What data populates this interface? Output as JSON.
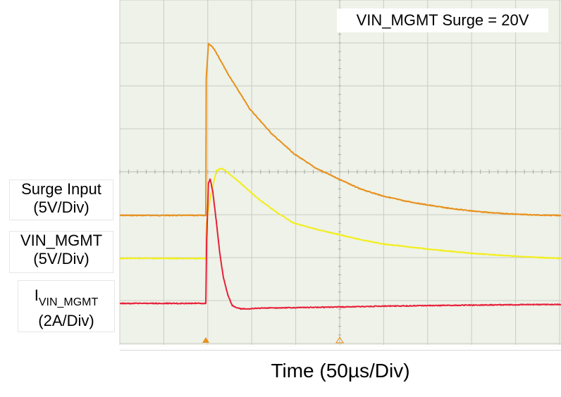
{
  "chart_data": {
    "type": "line",
    "title": "VIN_MGMT Surge = 20V",
    "xlabel": "Time (50µs/Div)",
    "x_unit": "us",
    "x_per_div": 50,
    "x_divisions": 10,
    "y_divisions": 8,
    "grid": true,
    "trigger_time_us": 0,
    "series": [
      {
        "name": "Surge Input",
        "scale": "(5V/Div)",
        "unit": "V",
        "color": "#E8901C",
        "x": [
          -96,
          0,
          0.5,
          3,
          6,
          10,
          25,
          50,
          75,
          100,
          125,
          150,
          175,
          200,
          225,
          250,
          275,
          300,
          325,
          350,
          375,
          400
        ],
        "y": [
          0,
          0,
          16,
          20,
          19.8,
          19.3,
          16.5,
          12.4,
          9.5,
          7.2,
          5.5,
          4.3,
          3.1,
          2.3,
          1.7,
          1.25,
          0.85,
          0.55,
          0.3,
          0.15,
          0.05,
          0
        ]
      },
      {
        "name": "VIN_MGMT",
        "scale": "(5V/Div)",
        "unit": "V",
        "color": "#F2EE1A",
        "x": [
          -96,
          0,
          0.5,
          5,
          12,
          18,
          25,
          40,
          60,
          80,
          100,
          125,
          150,
          175,
          200,
          250,
          300,
          350,
          400
        ],
        "y": [
          0,
          0,
          4,
          7,
          10.2,
          10.5,
          10,
          8.7,
          6.9,
          5.4,
          4.1,
          3.4,
          2.8,
          2.2,
          1.7,
          1.1,
          0.6,
          0.25,
          0
        ]
      },
      {
        "name": "I_VIN_MGMT",
        "scale": "(2A/Div)",
        "unit": "A",
        "color": "#E8203A",
        "x": [
          -96,
          0,
          1,
          3,
          5,
          8,
          12,
          16,
          20,
          25,
          30,
          35,
          40,
          50,
          60,
          100,
          150,
          200,
          300,
          400
        ],
        "y": [
          0,
          0,
          3,
          5.6,
          5.8,
          5.2,
          3.8,
          2.3,
          1.2,
          0.4,
          -0.1,
          -0.2,
          -0.25,
          -0.25,
          -0.22,
          -0.2,
          -0.17,
          -0.13,
          -0.08,
          -0.05
        ]
      }
    ]
  },
  "labels": {
    "surge_input_name": "Surge Input",
    "surge_input_scale": "(5V/Div)",
    "vin_name": "VIN_MGMT",
    "vin_scale": "(5V/Div)",
    "i_main": "I",
    "i_sub": "VIN_MGMT",
    "i_scale": "(2A/Div)"
  }
}
